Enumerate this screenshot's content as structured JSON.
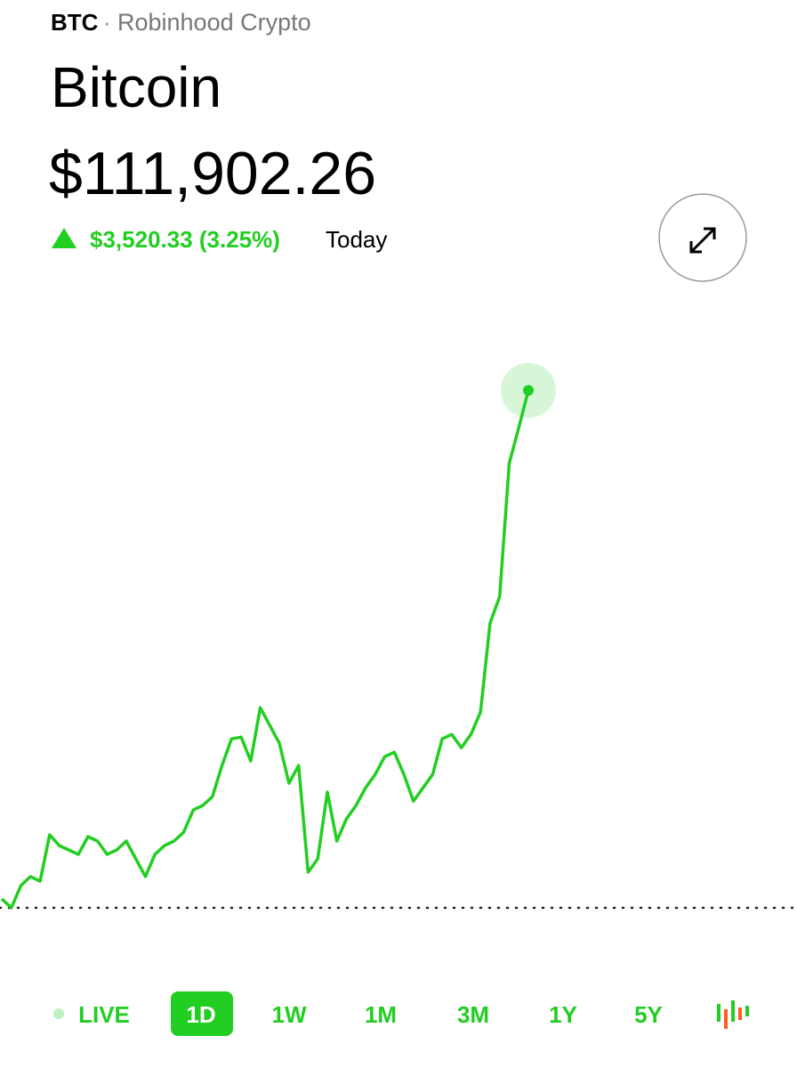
{
  "header": {
    "symbol": "BTC",
    "source": "Robinhood Crypto",
    "name": "Bitcoin",
    "price": "$111,902.26",
    "change": "$3,520.33 (3.25%)",
    "change_period": "Today"
  },
  "tabs": [
    "LIVE",
    "1D",
    "1W",
    "1M",
    "3M",
    "1Y",
    "5Y"
  ],
  "chart_data": {
    "type": "line",
    "color": "#21ce21",
    "ylim": [
      108200,
      112560
    ],
    "reference_line": 108381.93,
    "values": [
      108442,
      108382,
      108533,
      108594,
      108563,
      108878,
      108805,
      108775,
      108745,
      108866,
      108836,
      108745,
      108775,
      108836,
      108715,
      108594,
      108745,
      108805,
      108836,
      108896,
      109047,
      109078,
      109138,
      109350,
      109531,
      109543,
      109380,
      109743,
      109622,
      109501,
      109229,
      109350,
      108624,
      108715,
      109168,
      108836,
      108987,
      109078,
      109198,
      109289,
      109410,
      109440,
      109289,
      109108,
      109198,
      109289,
      109531,
      109561,
      109471,
      109561,
      109713,
      110317,
      110499,
      111406,
      111648,
      111902.26
    ]
  }
}
